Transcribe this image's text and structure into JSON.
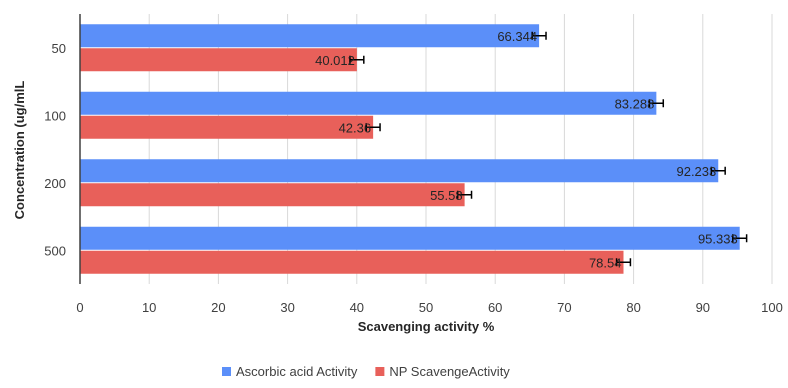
{
  "chart_data": {
    "type": "bar",
    "orientation": "horizontal",
    "categories": [
      "50",
      "100",
      "200",
      "500"
    ],
    "series": [
      {
        "name": "Ascorbic acid Activity",
        "values": [
          66.344,
          83.288,
          92.233,
          95.333
        ],
        "labels": [
          "66.344",
          "83.288",
          "92.233",
          "95.333"
        ],
        "error": [
          1,
          1,
          1,
          1
        ],
        "color": "#5b8ff9"
      },
      {
        "name": "NP ScavengeActivity",
        "values": [
          40.012,
          42.36,
          55.58,
          78.54
        ],
        "labels": [
          "40.012",
          "42.36",
          "55.58",
          "78.54"
        ],
        "error": [
          1,
          1,
          1,
          1
        ],
        "color": "#e8605a"
      }
    ],
    "xlabel": "Scavenging activity %",
    "ylabel": "Concentration (ug/mlL",
    "xlim": [
      0,
      100
    ],
    "xticks": [
      "0",
      "10",
      "20",
      "30",
      "40",
      "50",
      "60",
      "70",
      "80",
      "90",
      "100"
    ],
    "grid": "vertical",
    "legend": "bottom"
  }
}
